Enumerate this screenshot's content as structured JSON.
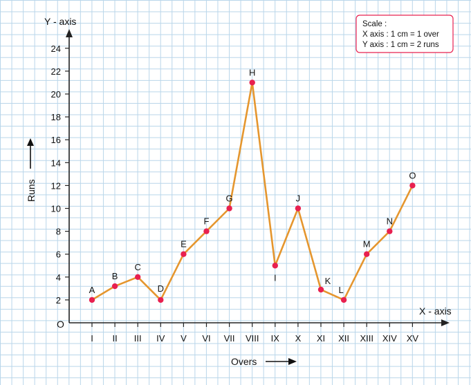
{
  "chart_data": {
    "type": "line",
    "xlabel": "Overs",
    "ylabel": "Runs",
    "x_axis_name": "X - axis",
    "y_axis_name": "Y - axis",
    "origin_label": "O",
    "categories": [
      "I",
      "II",
      "III",
      "IV",
      "V",
      "VI",
      "VII",
      "VIII",
      "IX",
      "X",
      "XI",
      "XII",
      "XIII",
      "XIV",
      "XV"
    ],
    "point_labels": [
      "A",
      "B",
      "C",
      "D",
      "E",
      "F",
      "G",
      "H",
      "I",
      "J",
      "K",
      "L",
      "M",
      "N",
      "O"
    ],
    "values": [
      2,
      3.2,
      4,
      2,
      6,
      8,
      10,
      21,
      5,
      10,
      2.9,
      2,
      6,
      8,
      12
    ],
    "yticks": [
      2,
      4,
      6,
      8,
      10,
      12,
      14,
      16,
      18,
      20,
      22,
      24
    ],
    "ylim": [
      0,
      24
    ],
    "grid": true,
    "scale_note": {
      "title": "Scale :",
      "line1": "X axis : 1 cm = 1 over",
      "line2": "Y axis : 1 cm = 2 runs"
    },
    "colors": {
      "line": "#e5962e",
      "point": "#e8204f",
      "grid": "#b9d6ea",
      "scale_border": "#e8204f"
    }
  }
}
